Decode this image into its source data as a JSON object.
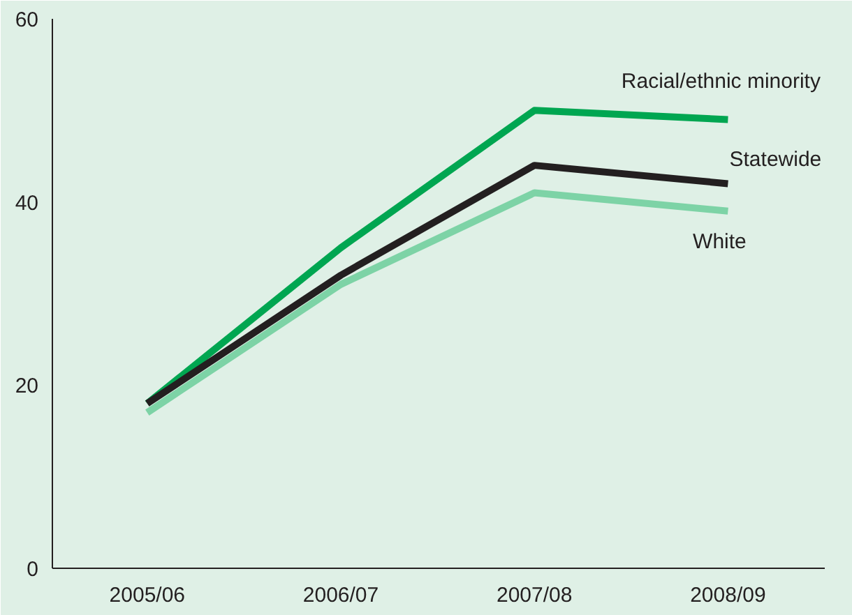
{
  "chart_data": {
    "type": "line",
    "categories": [
      "2005/06",
      "2006/07",
      "2007/08",
      "2008/09"
    ],
    "series": [
      {
        "name": "Racial/ethnic minority",
        "color": "#00a651",
        "values": [
          18,
          35,
          50,
          49
        ]
      },
      {
        "name": "Statewide",
        "color": "#231f20",
        "values": [
          18,
          32,
          44,
          42
        ]
      },
      {
        "name": "White",
        "color": "#7dd3a6",
        "values": [
          17,
          31,
          41,
          39
        ]
      }
    ],
    "ylim": [
      0,
      60
    ],
    "yticks": [
      0,
      20,
      40,
      60
    ],
    "grid": false,
    "legend": false,
    "marker": "none",
    "line_style": "solid"
  }
}
